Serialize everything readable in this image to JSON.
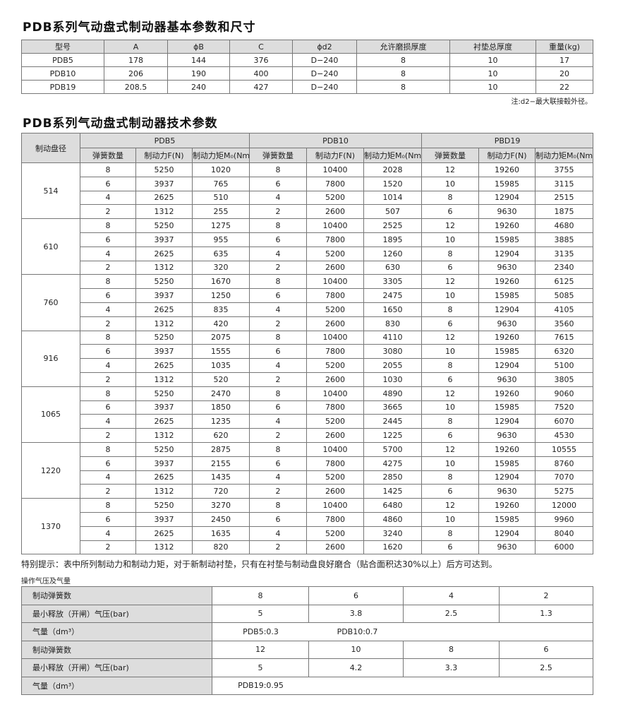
{
  "title1": "PDB系列气动盘式制动器基本参数和尺寸",
  "table1": {
    "headers": [
      "型号",
      "A",
      "ϕB",
      "C",
      "ϕd2",
      "允许磨损厚度",
      "衬垫总厚度",
      "重量(kg)"
    ],
    "rows": [
      [
        "PDB5",
        "178",
        "144",
        "376",
        "D−240",
        "8",
        "10",
        "17"
      ],
      [
        "PDB10",
        "206",
        "190",
        "400",
        "D−240",
        "8",
        "10",
        "20"
      ],
      [
        "PDB19",
        "208.5",
        "240",
        "427",
        "D−240",
        "8",
        "10",
        "22"
      ]
    ]
  },
  "note1": "注:d2−最大联接毂外径。",
  "title2": "PDB系列气动盘式制动器技术参数",
  "table2": {
    "corner": "制动盘径",
    "groups": [
      "PDB5",
      "PDB10",
      "PBD19"
    ],
    "subheaders": [
      "弹簧数量",
      "制动力F(N)",
      "制动力矩M₀(Nm)"
    ],
    "blocks": [
      {
        "disc": "514",
        "rows": [
          [
            "8",
            "5250",
            "1020",
            "8",
            "10400",
            "2028",
            "12",
            "19260",
            "3755"
          ],
          [
            "6",
            "3937",
            "765",
            "6",
            "7800",
            "1520",
            "10",
            "15985",
            "3115"
          ],
          [
            "4",
            "2625",
            "510",
            "4",
            "5200",
            "1014",
            "8",
            "12904",
            "2515"
          ],
          [
            "2",
            "1312",
            "255",
            "2",
            "2600",
            "507",
            "6",
            "9630",
            "1875"
          ]
        ]
      },
      {
        "disc": "610",
        "rows": [
          [
            "8",
            "5250",
            "1275",
            "8",
            "10400",
            "2525",
            "12",
            "19260",
            "4680"
          ],
          [
            "6",
            "3937",
            "955",
            "6",
            "7800",
            "1895",
            "10",
            "15985",
            "3885"
          ],
          [
            "4",
            "2625",
            "635",
            "4",
            "5200",
            "1260",
            "8",
            "12904",
            "3135"
          ],
          [
            "2",
            "1312",
            "320",
            "2",
            "2600",
            "630",
            "6",
            "9630",
            "2340"
          ]
        ]
      },
      {
        "disc": "760",
        "rows": [
          [
            "8",
            "5250",
            "1670",
            "8",
            "10400",
            "3305",
            "12",
            "19260",
            "6125"
          ],
          [
            "6",
            "3937",
            "1250",
            "6",
            "7800",
            "2475",
            "10",
            "15985",
            "5085"
          ],
          [
            "4",
            "2625",
            "835",
            "4",
            "5200",
            "1650",
            "8",
            "12904",
            "4105"
          ],
          [
            "2",
            "1312",
            "420",
            "2",
            "2600",
            "830",
            "6",
            "9630",
            "3560"
          ]
        ]
      },
      {
        "disc": "916",
        "rows": [
          [
            "8",
            "5250",
            "2075",
            "8",
            "10400",
            "4110",
            "12",
            "19260",
            "7615"
          ],
          [
            "6",
            "3937",
            "1555",
            "6",
            "7800",
            "3080",
            "10",
            "15985",
            "6320"
          ],
          [
            "4",
            "2625",
            "1035",
            "4",
            "5200",
            "2055",
            "8",
            "12904",
            "5100"
          ],
          [
            "2",
            "1312",
            "520",
            "2",
            "2600",
            "1030",
            "6",
            "9630",
            "3805"
          ]
        ]
      },
      {
        "disc": "1065",
        "rows": [
          [
            "8",
            "5250",
            "2470",
            "8",
            "10400",
            "4890",
            "12",
            "19260",
            "9060"
          ],
          [
            "6",
            "3937",
            "1850",
            "6",
            "7800",
            "3665",
            "10",
            "15985",
            "7520"
          ],
          [
            "4",
            "2625",
            "1235",
            "4",
            "5200",
            "2445",
            "8",
            "12904",
            "6070"
          ],
          [
            "2",
            "1312",
            "620",
            "2",
            "2600",
            "1225",
            "6",
            "9630",
            "4530"
          ]
        ]
      },
      {
        "disc": "1220",
        "rows": [
          [
            "8",
            "5250",
            "2875",
            "8",
            "10400",
            "5700",
            "12",
            "19260",
            "10555"
          ],
          [
            "6",
            "3937",
            "2155",
            "6",
            "7800",
            "4275",
            "10",
            "15985",
            "8760"
          ],
          [
            "4",
            "2625",
            "1435",
            "4",
            "5200",
            "2850",
            "8",
            "12904",
            "7070"
          ],
          [
            "2",
            "1312",
            "720",
            "2",
            "2600",
            "1425",
            "6",
            "9630",
            "5275"
          ]
        ]
      },
      {
        "disc": "1370",
        "rows": [
          [
            "8",
            "5250",
            "3270",
            "8",
            "10400",
            "6480",
            "12",
            "19260",
            "12000"
          ],
          [
            "6",
            "3937",
            "2450",
            "6",
            "7800",
            "4860",
            "10",
            "15985",
            "9960"
          ],
          [
            "4",
            "2625",
            "1635",
            "4",
            "5200",
            "3240",
            "8",
            "12904",
            "8040"
          ],
          [
            "2",
            "1312",
            "820",
            "2",
            "2600",
            "1620",
            "6",
            "9630",
            "6000"
          ]
        ]
      }
    ]
  },
  "tip": "特别提示：表中所列制动力和制动力矩，对于新制动衬垫，只有在衬垫与制动盘良好磨合（贴合面积达30%以上）后方可达到。",
  "subtitle3": "操作气压及气量",
  "table3": {
    "rows": [
      {
        "label": "制动弹簧数",
        "cells": [
          "8",
          "6",
          "4",
          "2"
        ]
      },
      {
        "label": "最小释放（开闸）气压(bar)",
        "cells": [
          "5",
          "3.8",
          "2.5",
          "1.3"
        ]
      },
      {
        "label": "气量（dm³）",
        "merged": [
          "PDB5:0.3",
          "PDB10:0.7"
        ]
      },
      {
        "label": "制动弹簧数",
        "cells": [
          "12",
          "10",
          "8",
          "6"
        ]
      },
      {
        "label": "最小释放（开闸）气压(bar)",
        "cells": [
          "5",
          "4.2",
          "3.3",
          "2.5"
        ]
      },
      {
        "label": "气量（dm³）",
        "merged": [
          "PDB19:0.95"
        ]
      }
    ]
  }
}
